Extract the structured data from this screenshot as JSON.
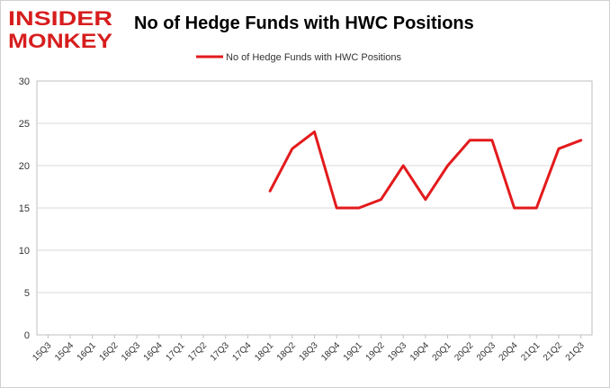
{
  "logo": {
    "line1": "INSIDER",
    "line2": "MONKEY",
    "color": "#d71d1d"
  },
  "chart_data": {
    "type": "line",
    "title": "No of Hedge Funds with HWC Positions",
    "xlabel": "",
    "ylabel": "",
    "categories": [
      "15Q3",
      "15Q4",
      "16Q1",
      "16Q2",
      "16Q3",
      "16Q4",
      "17Q1",
      "17Q2",
      "17Q3",
      "17Q4",
      "18Q1",
      "18Q2",
      "18Q3",
      "18Q4",
      "19Q1",
      "19Q2",
      "19Q3",
      "19Q4",
      "20Q1",
      "20Q2",
      "20Q3",
      "20Q4",
      "21Q1",
      "21Q2",
      "21Q3"
    ],
    "series": [
      {
        "name": "No of Hedge Funds with HWC Positions",
        "color": "#e31a1c",
        "values": [
          null,
          null,
          null,
          null,
          null,
          null,
          null,
          null,
          null,
          null,
          17,
          22,
          24,
          15,
          15,
          16,
          20,
          16,
          20,
          23,
          23,
          15,
          15,
          22,
          23
        ]
      }
    ],
    "ylim": [
      0,
      30
    ],
    "yticks": [
      0,
      5,
      10,
      15,
      20,
      25,
      30
    ],
    "grid": true,
    "legend_position": "top-center"
  }
}
